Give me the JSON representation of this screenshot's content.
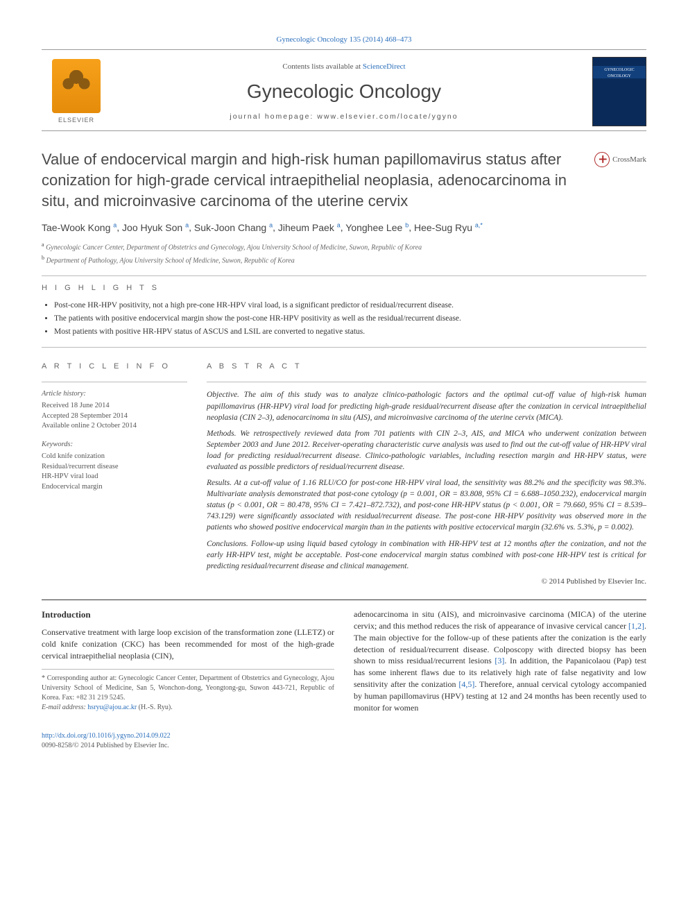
{
  "journal": {
    "citation": "Gynecologic Oncology 135 (2014) 468–473",
    "contents_prefix": "Contents lists available at ",
    "contents_link": "ScienceDirect",
    "name": "Gynecologic Oncology",
    "homepage_prefix": "journal homepage: ",
    "homepage": "www.elsevier.com/locate/ygyno",
    "publisher_label": "ELSEVIER",
    "cover_label": "GYNECOLOGIC ONCOLOGY"
  },
  "crossmark": "CrossMark",
  "title": "Value of endocervical margin and high-risk human papillomavirus status after conization for high-grade cervical intraepithelial neoplasia, adenocarcinoma in situ, and microinvasive carcinoma of the uterine cervix",
  "authors": [
    {
      "name": "Tae-Wook Kong",
      "aff": "a"
    },
    {
      "name": "Joo Hyuk Son",
      "aff": "a"
    },
    {
      "name": "Suk-Joon Chang",
      "aff": "a"
    },
    {
      "name": "Jiheum Paek",
      "aff": "a"
    },
    {
      "name": "Yonghee Lee",
      "aff": "b"
    },
    {
      "name": "Hee-Sug Ryu",
      "aff": "a,*"
    }
  ],
  "affiliations": [
    {
      "key": "a",
      "text": "Gynecologic Cancer Center, Department of Obstetrics and Gynecology, Ajou University School of Medicine, Suwon, Republic of Korea"
    },
    {
      "key": "b",
      "text": "Department of Pathology, Ajou University School of Medicine, Suwon, Republic of Korea"
    }
  ],
  "highlights_head": "H I G H L I G H T S",
  "highlights": [
    "Post-cone HR-HPV positivity, not a high pre-cone HR-HPV viral load, is a significant predictor of residual/recurrent disease.",
    "The patients with positive endocervical margin show the post-cone HR-HPV positivity as well as the residual/recurrent disease.",
    "Most patients with positive HR-HPV status of ASCUS and LSIL are converted to negative status."
  ],
  "info_head": "A R T I C L E   I N F O",
  "abstract_head": "A B S T R A C T",
  "history": {
    "hd": "Article history:",
    "received": "Received 18 June 2014",
    "accepted": "Accepted 28 September 2014",
    "online": "Available online 2 October 2014"
  },
  "keywords": {
    "hd": "Keywords:",
    "items": [
      "Cold knife conization",
      "Residual/recurrent disease",
      "HR-HPV viral load",
      "Endocervical margin"
    ]
  },
  "abstract": {
    "objective": "Objective. The aim of this study was to analyze clinico-pathologic factors and the optimal cut-off value of high-risk human papillomavirus (HR-HPV) viral load for predicting high-grade residual/recurrent disease after the conization in cervical intraepithelial neoplasia (CIN 2–3), adenocarcinoma in situ (AIS), and microinvasive carcinoma of the uterine cervix (MICA).",
    "methods": "Methods. We retrospectively reviewed data from 701 patients with CIN 2–3, AIS, and MICA who underwent conization between September 2003 and June 2012. Receiver-operating characteristic curve analysis was used to find out the cut-off value of HR-HPV viral load for predicting residual/recurrent disease. Clinico-pathologic variables, including resection margin and HR-HPV status, were evaluated as possible predictors of residual/recurrent disease.",
    "results": "Results. At a cut-off value of 1.16 RLU/CO for post-cone HR-HPV viral load, the sensitivity was 88.2% and the specificity was 98.3%. Multivariate analysis demonstrated that post-cone cytology (p = 0.001, OR = 83.808, 95% CI = 6.688–1050.232), endocervical margin status (p < 0.001, OR = 80.478, 95% CI = 7.421–872.732), and post-cone HR-HPV status (p < 0.001, OR = 79.660, 95% CI = 8.539–743.129) were significantly associated with residual/recurrent disease. The post-cone HR-HPV positivity was observed more in the patients who showed positive endocervical margin than in the patients with positive ectocervical margin (32.6% vs. 5.3%, p = 0.002).",
    "conclusions": "Conclusions. Follow-up using liquid based cytology in combination with HR-HPV test at 12 months after the conization, and not the early HR-HPV test, might be acceptable. Post-cone endocervical margin status combined with post-cone HR-HPV test is critical for predicting residual/recurrent disease and clinical management.",
    "copyright": "© 2014 Published by Elsevier Inc."
  },
  "intro_head": "Introduction",
  "intro_para1": "Conservative treatment with large loop excision of the transformation zone (LLETZ) or cold knife conization (CKC) has been recommended for most of the high-grade cervical intraepithelial neoplasia (CIN),",
  "intro_para2a": "adenocarcinoma in situ (AIS), and microinvasive carcinoma (MICA) of the uterine cervix; and this method reduces the risk of appearance of invasive cervical cancer ",
  "intro_ref12": "[1,2]",
  "intro_para2b": ". The main objective for the follow-up of these patients after the conization is the early detection of residual/recurrent disease. Colposcopy with directed biopsy has been shown to miss residual/recurrent lesions ",
  "intro_ref3": "[3]",
  "intro_para2c": ". In addition, the Papanicolaou (Pap) test has some inherent flaws due to its relatively high rate of false negativity and low sensitivity after the conization ",
  "intro_ref45": "[4,5]",
  "intro_para2d": ". Therefore, annual cervical cytology accompanied by human papillomavirus (HPV) testing at 12 and 24 months has been recently used to monitor for women",
  "footnote": {
    "corr": "* Corresponding author at: Gynecologic Cancer Center, Department of Obstetrics and Gynecology, Ajou University School of Medicine, San 5, Wonchon-dong, Yeongtong-gu, Suwon 443-721, Republic of Korea. Fax: +82 31 219 5245.",
    "email_label": "E-mail address: ",
    "email": "hsryu@ajou.ac.kr",
    "email_name": " (H.-S. Ryu)."
  },
  "doi": {
    "url": "http://dx.doi.org/10.1016/j.ygyno.2014.09.022",
    "line2": "0090-8258/© 2014 Published by Elsevier Inc."
  },
  "colors": {
    "link": "#2a6ebb",
    "text": "#333333",
    "muted": "#666666",
    "rule": "#bbbbbb",
    "brand_orange": "#e58c0a",
    "cover_blue": "#0a2b5a"
  }
}
